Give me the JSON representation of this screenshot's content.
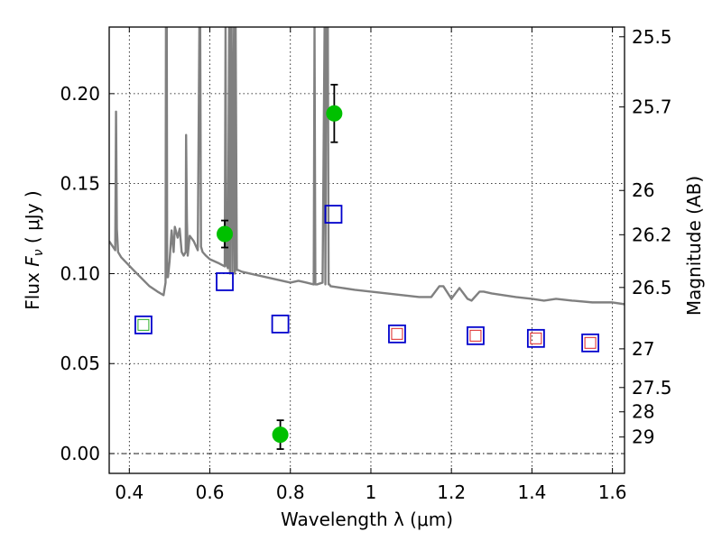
{
  "chart_data": {
    "type": "scatter",
    "xlabel": "Wavelength  λ (μm)",
    "ylabel": "Flux  F_ν  ( μJy )",
    "ylabel_parts": {
      "prefix": "Flux  ",
      "symbol": "F",
      "subscript": "ν",
      "suffix": "  ( μJy )"
    },
    "y2label": "Magnitude (AB)",
    "xlim": [
      0.35,
      1.63
    ],
    "ylim": [
      -0.011,
      0.237
    ],
    "grid": true,
    "x_ticks": [
      0.4,
      0.6,
      0.8,
      1.0,
      1.2,
      1.4,
      1.6
    ],
    "x_tick_labels": [
      "0.4",
      "0.6",
      "0.8",
      "1",
      "1.2",
      "1.4",
      "1.6"
    ],
    "y_ticks": [
      0.0,
      0.05,
      0.1,
      0.15,
      0.2
    ],
    "y_tick_labels": [
      "0.00",
      "0.05",
      "0.10",
      "0.15",
      "0.20"
    ],
    "y2_ticks": [
      {
        "label": "25.5",
        "flux": 0.2316
      },
      {
        "label": "25.7",
        "flux": 0.1926
      },
      {
        "label": "26",
        "flux": 0.1462
      },
      {
        "label": "26.2",
        "flux": 0.1216
      },
      {
        "label": "26.5",
        "flux": 0.0923
      },
      {
        "label": "27",
        "flux": 0.0582
      },
      {
        "label": "27.5",
        "flux": 0.0367
      },
      {
        "label": "28",
        "flux": 0.0232
      },
      {
        "label": "29",
        "flux": 0.0092
      }
    ],
    "series": [
      {
        "name": "observed",
        "kind": "points_with_errors",
        "color": "#00c000",
        "points": [
          {
            "x": 0.637,
            "y": 0.122,
            "err": 0.0075
          },
          {
            "x": 0.775,
            "y": 0.0105,
            "err": 0.008
          },
          {
            "x": 0.909,
            "y": 0.189,
            "err": 0.016
          }
        ]
      },
      {
        "name": "model_blue",
        "kind": "open_squares",
        "color": "#0000cc",
        "points": [
          {
            "x": 0.435,
            "y": 0.0715
          },
          {
            "x": 0.637,
            "y": 0.0955
          },
          {
            "x": 0.775,
            "y": 0.072
          },
          {
            "x": 0.907,
            "y": 0.133
          },
          {
            "x": 1.065,
            "y": 0.0665
          },
          {
            "x": 1.26,
            "y": 0.0655
          },
          {
            "x": 1.41,
            "y": 0.064
          },
          {
            "x": 1.545,
            "y": 0.0615
          }
        ]
      },
      {
        "name": "model_inner",
        "kind": "small_squares",
        "points": [
          {
            "x": 0.435,
            "y": 0.0715,
            "color": "#22aa22"
          },
          {
            "x": 1.065,
            "y": 0.0665,
            "color": "#dd2222"
          },
          {
            "x": 1.26,
            "y": 0.0655,
            "color": "#dd2222"
          },
          {
            "x": 1.41,
            "y": 0.064,
            "color": "#dd2222"
          },
          {
            "x": 1.545,
            "y": 0.0615,
            "color": "#dd2222"
          }
        ]
      },
      {
        "name": "sed",
        "kind": "line",
        "color": "#808080",
        "x": [
          0.35,
          0.365,
          0.367,
          0.369,
          0.372,
          0.38,
          0.41,
          0.45,
          0.47,
          0.485,
          0.49,
          0.491,
          0.493,
          0.494,
          0.496,
          0.5,
          0.505,
          0.51,
          0.513,
          0.52,
          0.525,
          0.53,
          0.535,
          0.54,
          0.541,
          0.543,
          0.545,
          0.55,
          0.56,
          0.57,
          0.574,
          0.576,
          0.578,
          0.582,
          0.59,
          0.6,
          0.62,
          0.637,
          0.639,
          0.641,
          0.645,
          0.648,
          0.65,
          0.652,
          0.654,
          0.656,
          0.66,
          0.662,
          0.664,
          0.667,
          0.67,
          0.68,
          0.7,
          0.72,
          0.74,
          0.76,
          0.78,
          0.8,
          0.82,
          0.84,
          0.858,
          0.86,
          0.862,
          0.866,
          0.88,
          0.885,
          0.887,
          0.889,
          0.893,
          0.895,
          0.897,
          0.9,
          0.93,
          0.96,
          1.0,
          1.04,
          1.08,
          1.12,
          1.15,
          1.17,
          1.18,
          1.2,
          1.22,
          1.24,
          1.25,
          1.27,
          1.28,
          1.3,
          1.33,
          1.36,
          1.4,
          1.43,
          1.46,
          1.5,
          1.55,
          1.6,
          1.63
        ],
        "y": [
          0.118,
          0.113,
          0.19,
          0.125,
          0.112,
          0.109,
          0.102,
          0.093,
          0.09,
          0.088,
          0.095,
          0.237,
          0.237,
          0.098,
          0.098,
          0.107,
          0.124,
          0.112,
          0.126,
          0.12,
          0.125,
          0.112,
          0.11,
          0.112,
          0.177,
          0.13,
          0.11,
          0.121,
          0.118,
          0.113,
          0.237,
          0.237,
          0.115,
          0.112,
          0.11,
          0.108,
          0.106,
          0.104,
          0.237,
          0.105,
          0.103,
          0.237,
          0.1,
          0.237,
          0.237,
          0.1,
          0.237,
          0.1,
          0.237,
          0.102,
          0.102,
          0.101,
          0.1,
          0.099,
          0.098,
          0.097,
          0.096,
          0.095,
          0.096,
          0.095,
          0.094,
          0.237,
          0.094,
          0.094,
          0.095,
          0.237,
          0.094,
          0.237,
          0.237,
          0.094,
          0.094,
          0.093,
          0.092,
          0.091,
          0.09,
          0.089,
          0.088,
          0.087,
          0.087,
          0.093,
          0.093,
          0.086,
          0.092,
          0.086,
          0.085,
          0.09,
          0.09,
          0.089,
          0.088,
          0.087,
          0.086,
          0.085,
          0.086,
          0.085,
          0.084,
          0.084,
          0.083
        ]
      }
    ]
  },
  "colors": {
    "line": "#808080",
    "observed": "#00c000",
    "errorbar": "#000000",
    "square": "#0000cc"
  }
}
